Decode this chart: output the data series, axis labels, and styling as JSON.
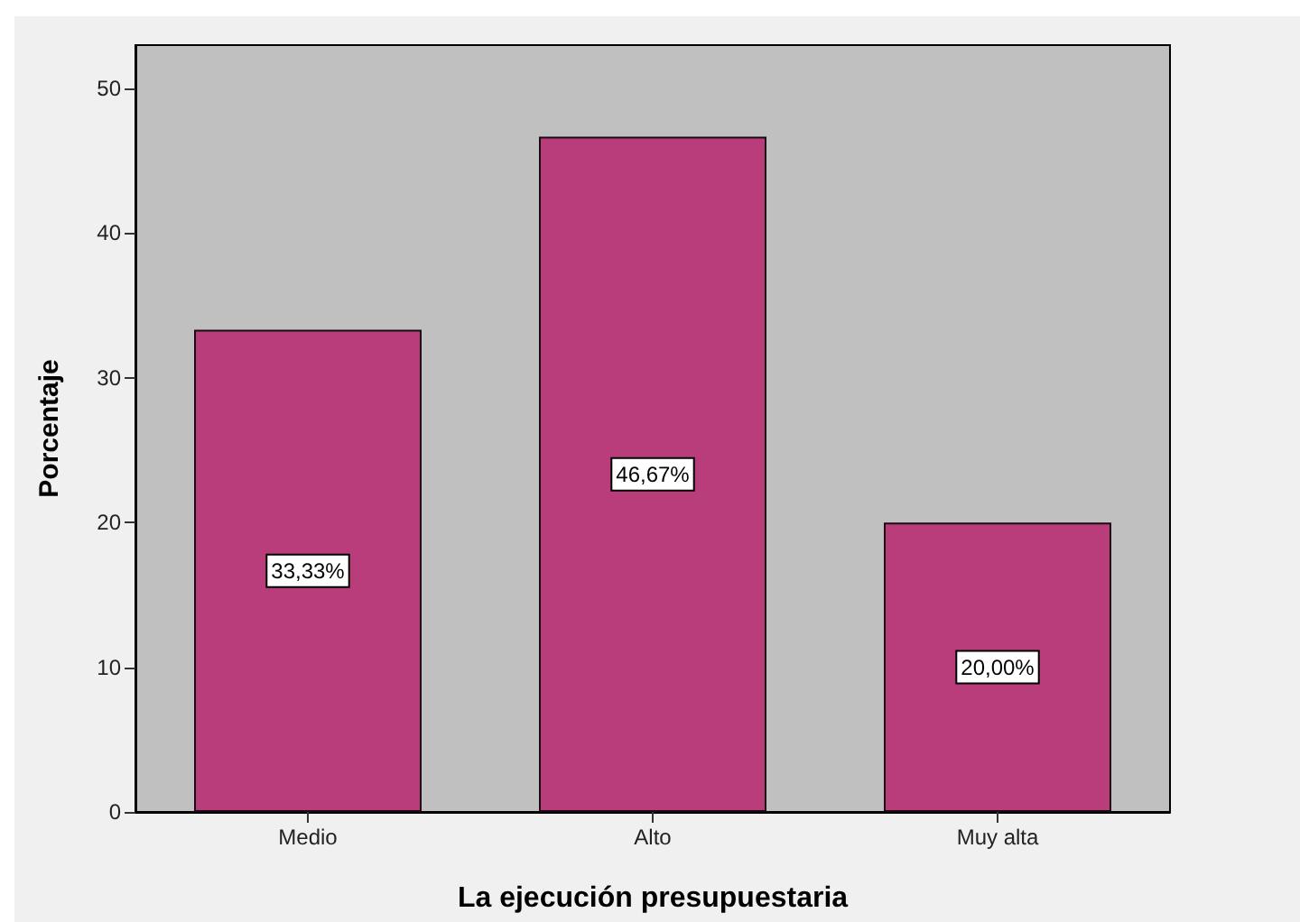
{
  "chart_data": {
    "type": "bar",
    "xlabel": "La ejecución presupuestaria",
    "ylabel": "Porcentaje",
    "categories": [
      "Medio",
      "Alto",
      "Muy alta"
    ],
    "values": [
      33.33,
      46.67,
      20.0
    ],
    "value_labels": [
      "33,33%",
      "46,67%",
      "20,00%"
    ],
    "color": "#b93d7b",
    "ylim": [
      0,
      53
    ],
    "yticks": [
      0,
      10,
      20,
      30,
      40,
      50
    ]
  }
}
